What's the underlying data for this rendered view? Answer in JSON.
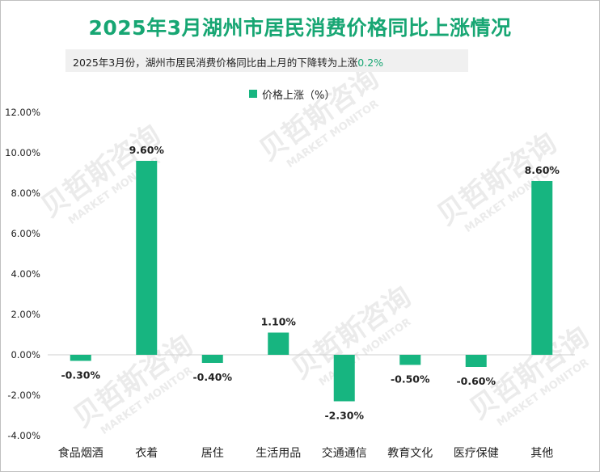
{
  "header": {
    "title": "2025年3月湖州市居民消费价格同比上涨情况",
    "subtitle_prefix": "2025年3月份，湖州市居民消费价格同比由上月的下降转为上涨",
    "subtitle_value": "0.2%"
  },
  "watermark": {
    "cn": "贝哲斯咨询",
    "en": "MARKET MONITOR"
  },
  "colors": {
    "title": "#17a673",
    "bar": "#17b580",
    "accent": "#17a673"
  },
  "chart_data": {
    "type": "bar",
    "categories": [
      "食品烟酒",
      "衣着",
      "居住",
      "生活用品",
      "交通通信",
      "教育文化",
      "医疗保健",
      "其他"
    ],
    "series": [
      {
        "name": "价格上涨（%）",
        "values": [
          -0.3,
          9.6,
          -0.4,
          1.1,
          -2.3,
          -0.5,
          -0.6,
          8.6
        ]
      }
    ],
    "data_labels": [
      "-0.30%",
      "9.60%",
      "-0.40%",
      "1.10%",
      "-2.30%",
      "-0.50%",
      "-0.60%",
      "8.60%"
    ],
    "ylim": [
      -4,
      12
    ],
    "yticks": [
      -4,
      -2,
      0,
      2,
      4,
      6,
      8,
      10,
      12
    ],
    "ytick_labels": [
      "-4.00%",
      "-2.00%",
      "0.00%",
      "2.00%",
      "4.00%",
      "6.00%",
      "8.00%",
      "10.00%",
      "12.00%"
    ],
    "grid": false,
    "legend": "top-center"
  }
}
